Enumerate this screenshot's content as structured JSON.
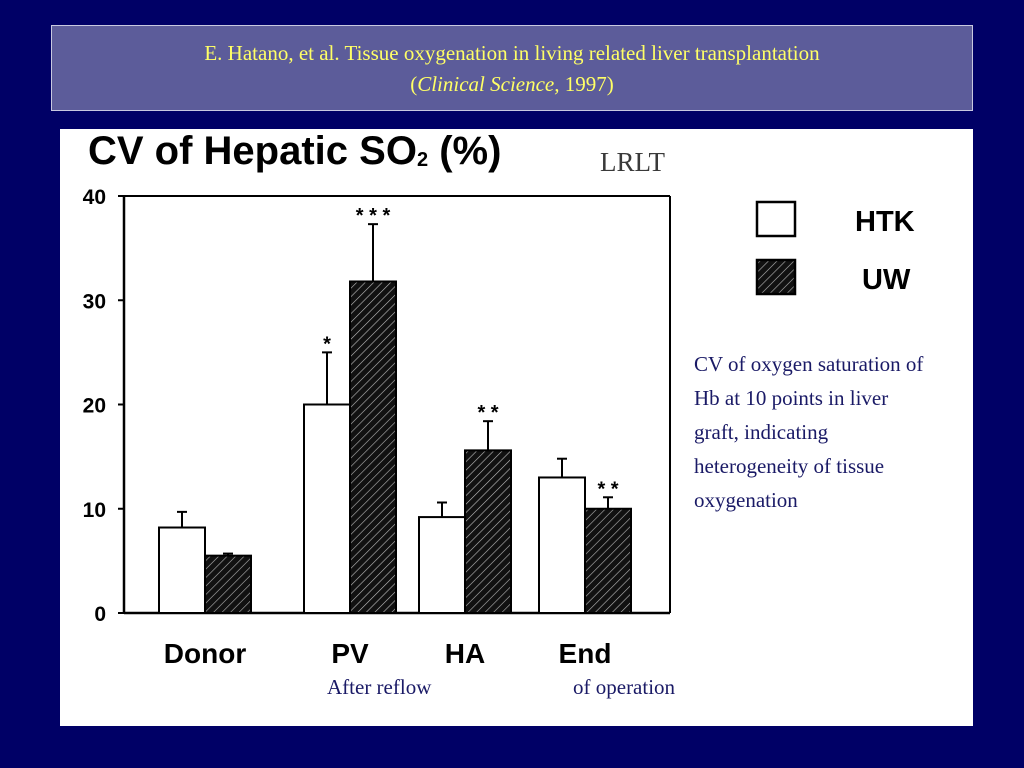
{
  "header": {
    "citation_line1": "E. Hatano, et al. Tissue oxygenation in living related liver transplantation",
    "citation_open": "(",
    "citation_journal": "Clinical Science,",
    "citation_year": " 1997)"
  },
  "panel": {
    "note": "CV of oxygen saturation of Hb at 10 points in liver graft, indicating heterogeneity of tissue oxygenation",
    "caption_left": "After reflow",
    "caption_right": "of operation"
  },
  "chart_data": {
    "type": "bar",
    "title_main": "CV of Hepatic SO",
    "title_sub": "2",
    "title_tail": " (%)",
    "subtitle": "LRLT",
    "categories": [
      "Donor",
      "PV",
      "HA",
      "End"
    ],
    "series": [
      {
        "name": "HTK",
        "values": [
          8.2,
          20.0,
          9.2,
          13.0
        ],
        "errors": [
          1.5,
          5.0,
          1.4,
          1.8
        ],
        "color": "#ffffff"
      },
      {
        "name": "UW",
        "values": [
          5.5,
          31.8,
          15.6,
          10.0
        ],
        "errors": [
          0.2,
          5.5,
          2.8,
          1.1
        ],
        "color": "#1a1a1a"
      }
    ],
    "significance": [
      {
        "category": "PV",
        "series": "HTK",
        "label": "*"
      },
      {
        "category": "PV",
        "series": "UW",
        "label": "* * *"
      },
      {
        "category": "HA",
        "series": "UW",
        "label": "* *"
      },
      {
        "category": "End",
        "series": "UW",
        "label": "* *"
      }
    ],
    "ylim": [
      0,
      40
    ],
    "yticks": [
      "0",
      "10",
      "20",
      "30",
      "40"
    ],
    "grid": false,
    "legend": "right"
  }
}
